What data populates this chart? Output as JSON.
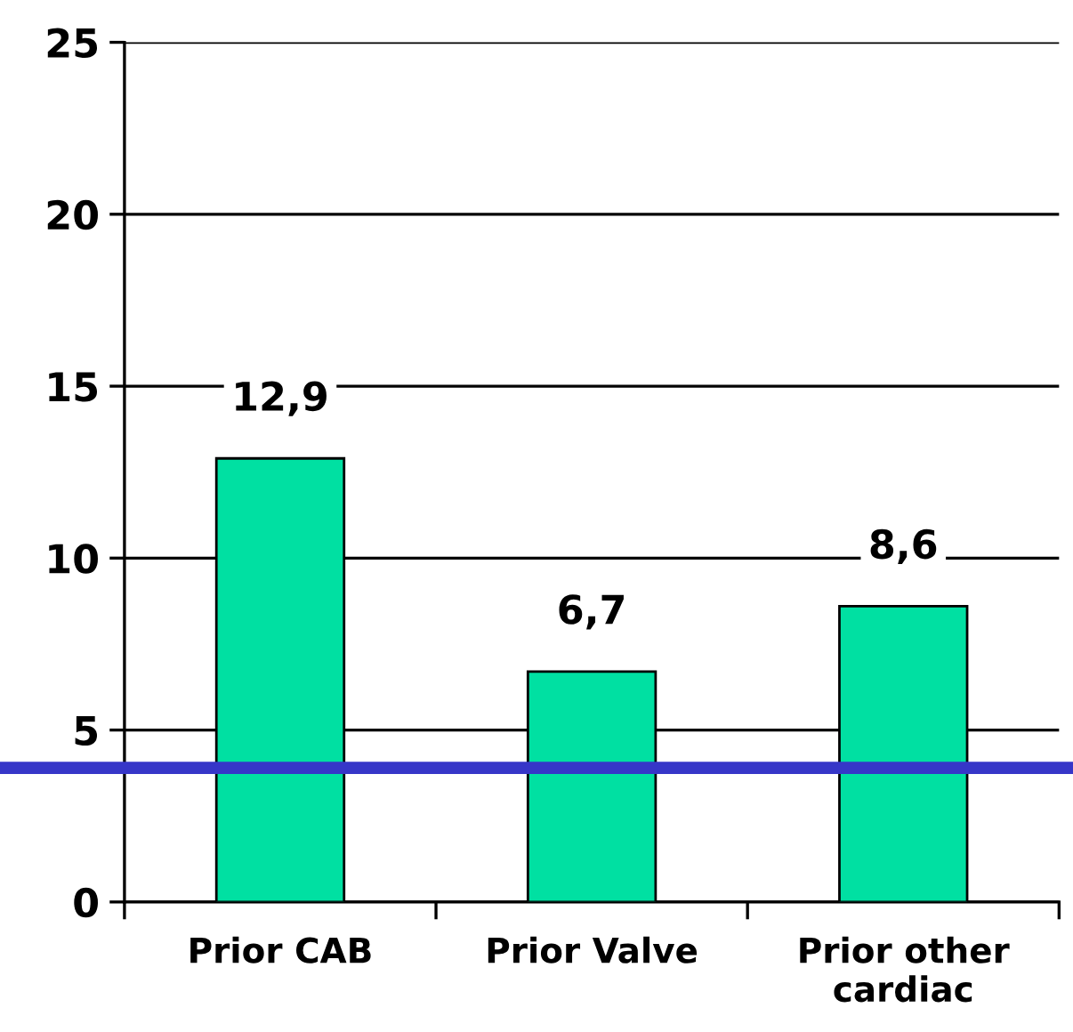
{
  "chart_data": {
    "type": "bar",
    "categories": [
      "Prior CAB",
      "Prior Valve",
      "Prior other\ncardiac"
    ],
    "values": [
      12.9,
      6.7,
      8.6
    ],
    "value_labels": [
      "12,9",
      "6,7",
      "8,6"
    ],
    "color": "#00e0a2",
    "ylim": [
      0,
      25
    ],
    "yticks": [
      0,
      5,
      10,
      15,
      20,
      25
    ],
    "grid": "y",
    "ref_lines": [
      {
        "axis": "y",
        "value": 3.9,
        "color": "#3636c8"
      }
    ]
  }
}
